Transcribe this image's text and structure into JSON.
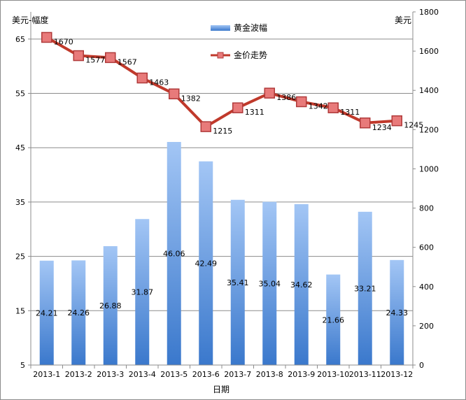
{
  "chart_data": {
    "type": "bar+line",
    "categories": [
      "2013-1",
      "2013-2",
      "2013-3",
      "2013-4",
      "2013-5",
      "2013-6",
      "2013-7",
      "2013-8",
      "2013-9",
      "2013-10",
      "2013-11",
      "2013-12"
    ],
    "series": [
      {
        "name": "黄金波幅",
        "type": "bar",
        "axis": "left",
        "values": [
          24.21,
          24.26,
          26.88,
          31.87,
          46.06,
          42.49,
          35.41,
          35.04,
          34.62,
          21.66,
          33.21,
          24.33
        ],
        "labels": [
          "24.21",
          "24.26",
          "26.88",
          "31.87",
          "46.06",
          "42.49",
          "35.41",
          "35.04",
          "34.62",
          "21.66",
          "33.21",
          "24.33"
        ]
      },
      {
        "name": "金价走势",
        "type": "line",
        "axis": "right",
        "values": [
          1670,
          1577,
          1567,
          1463,
          1382,
          1215,
          1311,
          1386,
          1342,
          1311,
          1234,
          1245
        ],
        "labels": [
          "1670",
          "1577",
          "1567",
          "1463",
          "1382",
          "1215",
          "1311",
          "1386",
          "1342",
          "1311",
          "1234",
          "1245"
        ]
      }
    ],
    "xlabel": "日期",
    "ylabel_left": "美元-幅度",
    "ylabel_right": "美元",
    "ylim_left": [
      5,
      70
    ],
    "yticks_left": [
      "5",
      "15",
      "25",
      "35",
      "45",
      "55",
      "65"
    ],
    "ylim_right": [
      0,
      1800
    ],
    "yticks_right": [
      "0",
      "200",
      "400",
      "600",
      "800",
      "1000",
      "1200",
      "1400",
      "1600",
      "1800"
    ],
    "grid": true,
    "legend_position": "top-center",
    "colors": {
      "bar_top": "#a3c6f5",
      "bar_bottom": "#3a78cc",
      "line": "#c0392b",
      "marker_fill": "#e87a7a",
      "marker_edge": "#b03a3a",
      "gridline": "#8c8c8c"
    }
  }
}
